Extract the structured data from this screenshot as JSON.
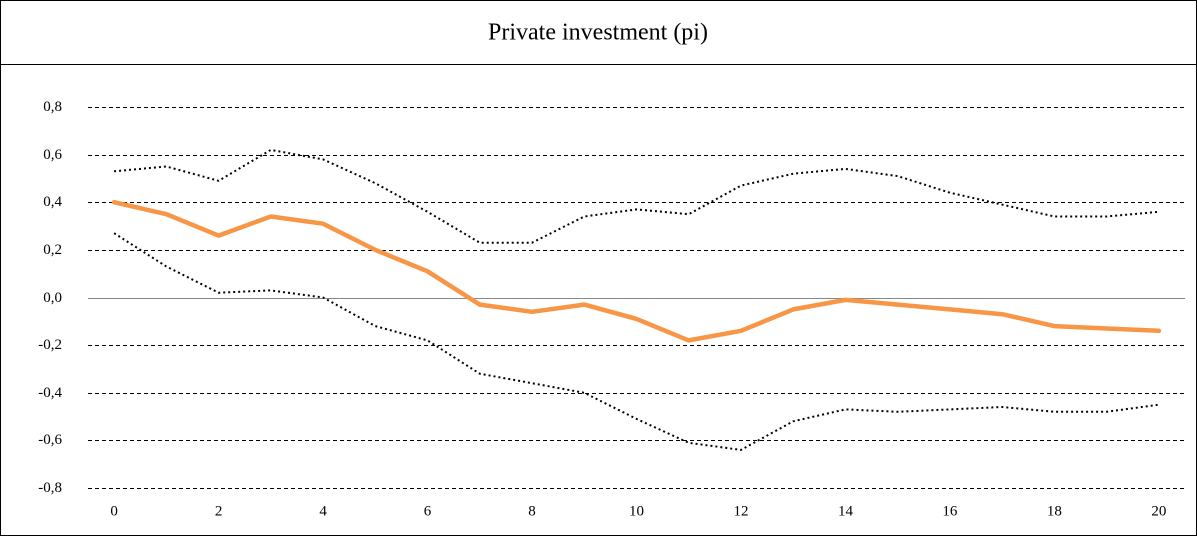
{
  "chart_data": {
    "type": "line",
    "title": "Private investment (pi)",
    "x": [
      0,
      1,
      2,
      3,
      4,
      5,
      6,
      7,
      8,
      9,
      10,
      11,
      12,
      13,
      14,
      15,
      16,
      17,
      18,
      19,
      20
    ],
    "xlim": [
      -0.5,
      20.5
    ],
    "xticks": [
      0,
      2,
      4,
      6,
      8,
      10,
      12,
      14,
      16,
      18,
      20
    ],
    "ylim": [
      -0.8,
      0.8
    ],
    "yticks": [
      {
        "value": -0.8,
        "label": "-0,8"
      },
      {
        "value": -0.6,
        "label": "-0,6"
      },
      {
        "value": -0.4,
        "label": "-0,4"
      },
      {
        "value": -0.2,
        "label": "-0,2"
      },
      {
        "value": 0,
        "label": "0,0"
      },
      {
        "value": 0.2,
        "label": "0,2"
      },
      {
        "value": 0.4,
        "label": "0,4"
      },
      {
        "value": 0.6,
        "label": "0,6"
      },
      {
        "value": 0.8,
        "label": "0,8"
      }
    ],
    "grid": true,
    "series": [
      {
        "color": "#f79646",
        "style": "solid",
        "values": [
          0.4,
          0.35,
          0.26,
          0.34,
          0.31,
          0.2,
          0.11,
          -0.03,
          -0.06,
          -0.03,
          -0.09,
          -0.18,
          -0.14,
          -0.05,
          -0.01,
          -0.03,
          -0.05,
          -0.07,
          -0.12,
          -0.13,
          -0.14
        ]
      },
      {
        "color": "#000000",
        "style": "dotted",
        "values": [
          0.53,
          0.55,
          0.49,
          0.62,
          0.58,
          0.48,
          0.36,
          0.23,
          0.23,
          0.34,
          0.37,
          0.35,
          0.47,
          0.52,
          0.54,
          0.51,
          0.44,
          0.39,
          0.34,
          0.34,
          0.36
        ]
      },
      {
        "color": "#000000",
        "style": "dotted",
        "values": [
          0.27,
          0.13,
          0.02,
          0.03,
          0.0,
          -0.12,
          -0.18,
          -0.32,
          -0.36,
          -0.4,
          -0.51,
          -0.61,
          -0.64,
          -0.52,
          -0.47,
          -0.48,
          -0.47,
          -0.46,
          -0.48,
          -0.48,
          -0.45
        ]
      }
    ]
  }
}
